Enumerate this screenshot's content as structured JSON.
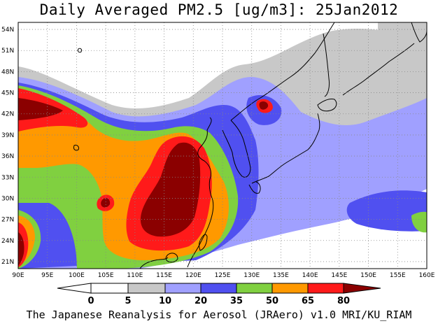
{
  "title": "Daily Averaged PM2.5 [ug/m3]: 25Jan2012",
  "footer": "The Japanese Reanalysis for Aerosol (JRAero) v1.0 MRI/KU_RIAM",
  "map": {
    "lon_min": 90,
    "lon_max": 160,
    "lat_min": 20,
    "lat_max": 55,
    "lat_ticks": [
      "54N",
      "51N",
      "48N",
      "45N",
      "42N",
      "39N",
      "36N",
      "33N",
      "30N",
      "27N",
      "24N",
      "21N"
    ],
    "lat_values": [
      54,
      51,
      48,
      45,
      42,
      39,
      36,
      33,
      30,
      27,
      24,
      21
    ],
    "lon_ticks": [
      "90E",
      "95E",
      "100E",
      "105E",
      "110E",
      "115E",
      "120E",
      "125E",
      "130E",
      "135E",
      "140E",
      "145E",
      "150E",
      "155E",
      "160E"
    ],
    "lon_values": [
      90,
      95,
      100,
      105,
      110,
      115,
      120,
      125,
      130,
      135,
      140,
      145,
      150,
      155,
      160
    ],
    "gridlines": true
  },
  "colorbar": {
    "levels": [
      "0",
      "5",
      "10",
      "20",
      "35",
      "50",
      "65",
      "80"
    ],
    "colors": [
      "#ffffff",
      "#c8c8c8",
      "#a0a0ff",
      "#5050f0",
      "#80d040",
      "#ff9900",
      "#ff1a1a",
      "#8b0000"
    ]
  }
}
